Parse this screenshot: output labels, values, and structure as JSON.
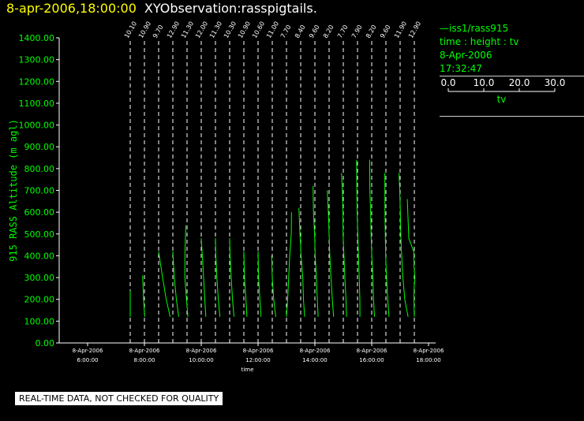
{
  "header": {
    "date_label": "8-apr-2006,18:00:00",
    "product_label": "XYObservation:rasspigtails."
  },
  "legend": {
    "series_line": "—iss1/rass915",
    "variables": "time : height : tv",
    "date": "8-Apr-2006",
    "time": "17:32:47",
    "scale_ticks": [
      "0.0",
      "10.0",
      "20.0",
      "30.0"
    ],
    "scale_label": "tv"
  },
  "disclaimer": "REAL-TIME DATA, NOT CHECKED FOR QUALITY",
  "colors": {
    "background": "#000000",
    "axis": "#ffffff",
    "data": "#00ff00",
    "title_date": "#ffff00"
  },
  "chart_data": {
    "type": "line",
    "title": "",
    "ylabel": "915 RASS Altitude (m agl)",
    "xlabel": "time",
    "ylim": [
      0,
      1400
    ],
    "xlim": [
      "8-Apr-2006 5:00:00",
      "8-Apr-2006 18:15:00"
    ],
    "y_ticks": [
      "0.00",
      "100.00",
      "200.00",
      "300.00",
      "400.00",
      "500.00",
      "600.00",
      "700.00",
      "800.00",
      "900.00",
      "1000.00",
      "1100.00",
      "1200.00",
      "1300.00",
      "1400.00"
    ],
    "x_ticks": [
      {
        "date": "8-Apr-2006",
        "time": "6:00:00"
      },
      {
        "date": "8-Apr-2006",
        "time": "8:00:00"
      },
      {
        "date": "8-Apr-2006",
        "time": "10:00:00"
      },
      {
        "date": "8-Apr-2006",
        "time": "12:00:00"
      },
      {
        "date": "8-Apr-2006",
        "time": "14:00:00"
      },
      {
        "date": "8-Apr-2006",
        "time": "16:00:00"
      },
      {
        "date": "8-Apr-2006",
        "time": "18:00:00"
      }
    ],
    "dashed_marker_times": [
      "7:30",
      "8:00",
      "8:30",
      "9:00",
      "9:30",
      "10:00",
      "10:30",
      "11:00",
      "11:30",
      "12:00",
      "12:30",
      "13:00",
      "13:30",
      "14:00",
      "14:30",
      "15:00",
      "15:30",
      "16:00",
      "16:30",
      "17:00",
      "17:30"
    ],
    "marker_labels": [
      "10.10",
      "10.90",
      "9.70",
      "12.90",
      "11.30",
      "12.00",
      "11.30",
      "10.30",
      "10.90",
      "10.60",
      "11.00",
      "7.70",
      "8.40",
      "9.60",
      "8.20",
      "7.70",
      "7.90",
      "8.20",
      "9.60",
      "11.90",
      "12.90"
    ],
    "tv_scale": {
      "range": [
        0,
        30
      ],
      "ticks": [
        "0.0",
        "10.0",
        "20.0",
        "30.0"
      ],
      "label": "tv"
    },
    "series": [
      {
        "name": "iss1/rass915",
        "profiles": [
          {
            "time": "7:30",
            "heights": [
              120,
              240
            ],
            "tv": [
              0.0,
              0.0
            ]
          },
          {
            "time": "8:00",
            "heights": [
              120,
              200,
              310
            ],
            "tv": [
              0.3,
              -0.8,
              -1.7
            ]
          },
          {
            "time": "8:30",
            "heights": [
              120,
              200,
              300,
              420
            ],
            "tv": [
              10.8,
              7.1,
              3.7,
              0.0
            ]
          },
          {
            "time": "9:00",
            "heights": [
              120,
              200,
              300,
              420
            ],
            "tv": [
              5.5,
              3.3,
              1.3,
              0.0
            ]
          },
          {
            "time": "9:30",
            "heights": [
              120,
              200,
              300,
              400,
              540
            ],
            "tv": [
              0.8,
              -0.5,
              -2.1,
              -2.0,
              -1.2
            ]
          },
          {
            "time": "10:00",
            "heights": [
              120,
              200,
              300,
              400,
              480
            ],
            "tv": [
              4.3,
              3.3,
              2.2,
              1.0,
              0.0
            ]
          },
          {
            "time": "10:30",
            "heights": [
              120,
              200,
              300,
              400,
              480
            ],
            "tv": [
              4.2,
              2.7,
              1.3,
              0.4,
              0.0
            ]
          },
          {
            "time": "11:00",
            "heights": [
              120,
              200,
              300,
              400,
              480
            ],
            "tv": [
              4.1,
              2.7,
              1.5,
              0.4,
              0.0
            ]
          },
          {
            "time": "11:30",
            "heights": [
              120,
              200,
              300,
              420
            ],
            "tv": [
              2.9,
              2.0,
              0.6,
              0.0
            ]
          },
          {
            "time": "12:00",
            "heights": [
              120,
              200,
              300,
              420
            ],
            "tv": [
              2.8,
              1.7,
              0.5,
              0.0
            ]
          },
          {
            "time": "12:30",
            "heights": [
              120,
              200,
              300,
              400
            ],
            "tv": [
              3.3,
              1.3,
              0.0,
              -0.6
            ]
          },
          {
            "time": "13:00",
            "heights": [
              120,
              200,
              300,
              400,
              500,
              600
            ],
            "tv": [
              0.0,
              1.1,
              2.1,
              3.0,
              4.5,
              4.7
            ]
          },
          {
            "time": "13:30",
            "heights": [
              120,
              200,
              300,
              400,
              500,
              620
            ],
            "tv": [
              3.7,
              2.6,
              2.0,
              0.4,
              -0.7,
              -1.7
            ]
          },
          {
            "time": "14:00",
            "heights": [
              120,
              200,
              300,
              400,
              500,
              600,
              720
            ],
            "tv": [
              3.0,
              2.3,
              1.4,
              0.3,
              -0.3,
              -1.3,
              -1.7
            ]
          },
          {
            "time": "14:30",
            "heights": [
              120,
              200,
              300,
              400,
              500,
              600,
              700
            ],
            "tv": [
              4.2,
              3.0,
              1.8,
              0.7,
              0.0,
              -0.7,
              -1.7
            ]
          },
          {
            "time": "15:00",
            "heights": [
              120,
              200,
              300,
              400,
              500,
              600,
              700,
              780
            ],
            "tv": [
              3.0,
              2.5,
              1.5,
              0.6,
              -0.2,
              -0.4,
              -0.9,
              -1.7
            ]
          },
          {
            "time": "15:30",
            "heights": [
              120,
              200,
              300,
              400,
              500,
              600,
              700,
              840
            ],
            "tv": [
              2.3,
              2.2,
              1.6,
              0.9,
              0.3,
              -0.4,
              -0.6,
              -0.9
            ]
          },
          {
            "time": "16:00",
            "heights": [
              120,
              200,
              300,
              400,
              500,
              600,
              700,
              840
            ],
            "tv": [
              2.6,
              1.7,
              1.1,
              0.1,
              -0.6,
              -1.0,
              -1.7,
              -1.9
            ]
          },
          {
            "time": "16:30",
            "heights": [
              120,
              200,
              300,
              400,
              500,
              600,
              780
            ],
            "tv": [
              2.9,
              1.7,
              0.6,
              -0.2,
              -0.6,
              -0.9,
              -1.0
            ]
          },
          {
            "time": "17:00",
            "heights": [
              120,
              200,
              300,
              400,
              500,
              600,
              700,
              780
            ],
            "tv": [
              7.5,
              4.4,
              2.6,
              1.5,
              0.6,
              0.2,
              -0.4,
              -1.0
            ]
          },
          {
            "time": "17:30",
            "heights": [
              120,
              200,
              250,
              300,
              350,
              420,
              480,
              660
            ],
            "tv": [
              0.0,
              -0.4,
              -0.2,
              0.6,
              -0.3,
              -0.5,
              -5.2,
              -6.6
            ]
          }
        ]
      }
    ]
  }
}
